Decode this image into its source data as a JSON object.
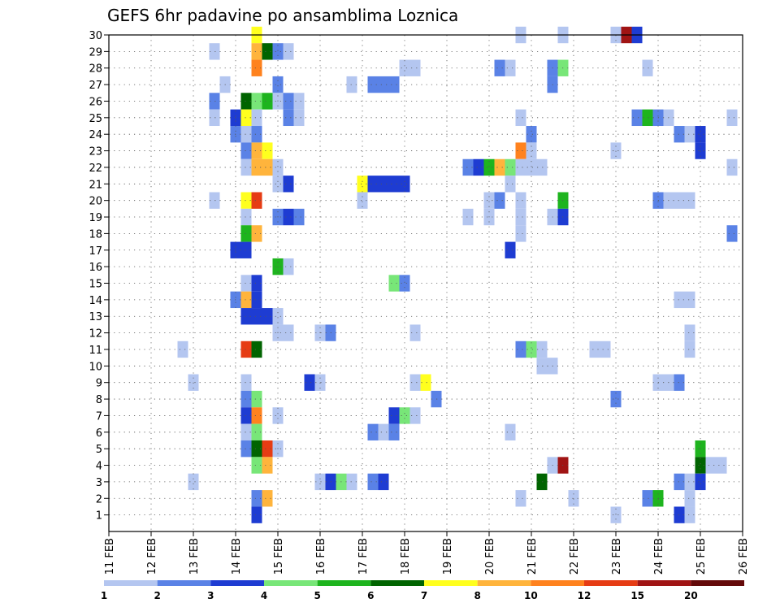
{
  "chart_data": {
    "type": "heatmap",
    "title": "GEFS 6hr padavine po ansamblima Loznica",
    "x_tick_labels": [
      "11 FEB",
      "12 FEB",
      "13 FEB",
      "14 FEB",
      "15 FEB",
      "16 FEB",
      "17 FEB",
      "18 FEB",
      "19 FEB",
      "20 FEB",
      "21 FEB",
      "22 FEB",
      "23 FEB",
      "24 FEB",
      "25 FEB",
      "26 FEB"
    ],
    "y_tick_labels": [
      "1",
      "2",
      "3",
      "4",
      "5",
      "6",
      "7",
      "8",
      "9",
      "10",
      "11",
      "12",
      "13",
      "14",
      "15",
      "16",
      "17",
      "18",
      "19",
      "20",
      "21",
      "22",
      "23",
      "24",
      "25",
      "26",
      "27",
      "28",
      "29",
      "30"
    ],
    "x_range_days": [
      11,
      26
    ],
    "y_range": [
      0,
      30
    ],
    "grid": true,
    "legend": {
      "position": "bottom",
      "boundaries": [
        "1",
        "2",
        "3",
        "4",
        "5",
        "6",
        "7",
        "8",
        "10",
        "12",
        "15",
        "20"
      ],
      "colors": [
        "#b4c6f0",
        "#5a82e6",
        "#1e3cd2",
        "#78e678",
        "#1eb41e",
        "#006400",
        "#ffff1e",
        "#ffb43c",
        "#ff821e",
        "#e63c14",
        "#a01414",
        "#640a0a"
      ]
    },
    "cells": [
      {
        "m": 30,
        "t": 14.5,
        "c": 6
      },
      {
        "m": 30,
        "t": 20.75,
        "c": 0
      },
      {
        "m": 30,
        "t": 21.75,
        "c": 0
      },
      {
        "m": 30,
        "t": 23.0,
        "c": 0
      },
      {
        "m": 30,
        "t": 23.25,
        "c": 10
      },
      {
        "m": 30,
        "t": 23.5,
        "c": 2
      },
      {
        "m": 29,
        "t": 13.5,
        "c": 0
      },
      {
        "m": 29,
        "t": 14.5,
        "c": 7
      },
      {
        "m": 29,
        "t": 14.75,
        "c": 5
      },
      {
        "m": 29,
        "t": 15.0,
        "c": 1
      },
      {
        "m": 29,
        "t": 15.25,
        "c": 0
      },
      {
        "m": 28,
        "t": 14.5,
        "c": 8
      },
      {
        "m": 28,
        "t": 18.0,
        "c": 0
      },
      {
        "m": 28,
        "t": 18.25,
        "c": 0
      },
      {
        "m": 28,
        "t": 20.25,
        "c": 1
      },
      {
        "m": 28,
        "t": 20.5,
        "c": 0
      },
      {
        "m": 28,
        "t": 21.5,
        "c": 1
      },
      {
        "m": 28,
        "t": 21.75,
        "c": 3
      },
      {
        "m": 28,
        "t": 23.75,
        "c": 0
      },
      {
        "m": 27,
        "t": 13.75,
        "c": 0
      },
      {
        "m": 27,
        "t": 15.0,
        "c": 1
      },
      {
        "m": 27,
        "t": 16.75,
        "c": 0
      },
      {
        "m": 27,
        "t": 17.25,
        "c": 1
      },
      {
        "m": 27,
        "t": 17.5,
        "c": 1
      },
      {
        "m": 27,
        "t": 17.75,
        "c": 1
      },
      {
        "m": 27,
        "t": 21.5,
        "c": 1
      },
      {
        "m": 26,
        "t": 13.5,
        "c": 1
      },
      {
        "m": 26,
        "t": 14.25,
        "c": 5
      },
      {
        "m": 26,
        "t": 14.5,
        "c": 3
      },
      {
        "m": 26,
        "t": 14.75,
        "c": 4
      },
      {
        "m": 26,
        "t": 15.0,
        "c": 0
      },
      {
        "m": 26,
        "t": 15.25,
        "c": 1
      },
      {
        "m": 26,
        "t": 15.5,
        "c": 0
      },
      {
        "m": 25,
        "t": 13.5,
        "c": 0
      },
      {
        "m": 25,
        "t": 14.0,
        "c": 2
      },
      {
        "m": 25,
        "t": 14.25,
        "c": 6
      },
      {
        "m": 25,
        "t": 14.5,
        "c": 0
      },
      {
        "m": 25,
        "t": 15.25,
        "c": 1
      },
      {
        "m": 25,
        "t": 15.5,
        "c": 0
      },
      {
        "m": 25,
        "t": 20.75,
        "c": 0
      },
      {
        "m": 25,
        "t": 23.5,
        "c": 1
      },
      {
        "m": 25,
        "t": 23.75,
        "c": 4
      },
      {
        "m": 25,
        "t": 24.0,
        "c": 1
      },
      {
        "m": 25,
        "t": 24.25,
        "c": 0
      },
      {
        "m": 25,
        "t": 25.75,
        "c": 0
      },
      {
        "m": 24,
        "t": 14.0,
        "c": 1
      },
      {
        "m": 24,
        "t": 14.25,
        "c": 0
      },
      {
        "m": 24,
        "t": 14.5,
        "c": 1
      },
      {
        "m": 24,
        "t": 21.0,
        "c": 1
      },
      {
        "m": 24,
        "t": 24.5,
        "c": 1
      },
      {
        "m": 24,
        "t": 24.75,
        "c": 0
      },
      {
        "m": 24,
        "t": 25.0,
        "c": 2
      },
      {
        "m": 23,
        "t": 14.25,
        "c": 1
      },
      {
        "m": 23,
        "t": 14.5,
        "c": 7
      },
      {
        "m": 23,
        "t": 14.75,
        "c": 6
      },
      {
        "m": 23,
        "t": 20.75,
        "c": 8
      },
      {
        "m": 23,
        "t": 21.0,
        "c": 0
      },
      {
        "m": 23,
        "t": 23.0,
        "c": 0
      },
      {
        "m": 23,
        "t": 25.0,
        "c": 2
      },
      {
        "m": 22,
        "t": 14.25,
        "c": 0
      },
      {
        "m": 22,
        "t": 14.5,
        "c": 7
      },
      {
        "m": 22,
        "t": 14.75,
        "c": 7
      },
      {
        "m": 22,
        "t": 15.0,
        "c": 0
      },
      {
        "m": 22,
        "t": 19.5,
        "c": 1
      },
      {
        "m": 22,
        "t": 19.75,
        "c": 2
      },
      {
        "m": 22,
        "t": 20.0,
        "c": 4
      },
      {
        "m": 22,
        "t": 20.25,
        "c": 7
      },
      {
        "m": 22,
        "t": 20.5,
        "c": 3
      },
      {
        "m": 22,
        "t": 20.75,
        "c": 0
      },
      {
        "m": 22,
        "t": 21.0,
        "c": 0
      },
      {
        "m": 22,
        "t": 21.25,
        "c": 0
      },
      {
        "m": 22,
        "t": 25.75,
        "c": 0
      },
      {
        "m": 21,
        "t": 15.0,
        "c": 0
      },
      {
        "m": 21,
        "t": 15.25,
        "c": 2
      },
      {
        "m": 21,
        "t": 17.0,
        "c": 6
      },
      {
        "m": 21,
        "t": 17.25,
        "c": 2
      },
      {
        "m": 21,
        "t": 17.5,
        "c": 2
      },
      {
        "m": 21,
        "t": 17.75,
        "c": 2
      },
      {
        "m": 21,
        "t": 18.0,
        "c": 2
      },
      {
        "m": 21,
        "t": 20.5,
        "c": 0
      },
      {
        "m": 20,
        "t": 13.5,
        "c": 0
      },
      {
        "m": 20,
        "t": 14.25,
        "c": 6
      },
      {
        "m": 20,
        "t": 14.5,
        "c": 9
      },
      {
        "m": 20,
        "t": 17.0,
        "c": 0
      },
      {
        "m": 20,
        "t": 20.0,
        "c": 0
      },
      {
        "m": 20,
        "t": 20.25,
        "c": 1
      },
      {
        "m": 20,
        "t": 20.75,
        "c": 0
      },
      {
        "m": 20,
        "t": 21.75,
        "c": 4
      },
      {
        "m": 20,
        "t": 24.0,
        "c": 1
      },
      {
        "m": 20,
        "t": 24.25,
        "c": 0
      },
      {
        "m": 20,
        "t": 24.5,
        "c": 0
      },
      {
        "m": 20,
        "t": 24.75,
        "c": 0
      },
      {
        "m": 19,
        "t": 14.25,
        "c": 0
      },
      {
        "m": 19,
        "t": 15.0,
        "c": 1
      },
      {
        "m": 19,
        "t": 15.25,
        "c": 2
      },
      {
        "m": 19,
        "t": 15.5,
        "c": 1
      },
      {
        "m": 19,
        "t": 19.5,
        "c": 0
      },
      {
        "m": 19,
        "t": 20.0,
        "c": 0
      },
      {
        "m": 19,
        "t": 20.75,
        "c": 0
      },
      {
        "m": 19,
        "t": 21.5,
        "c": 0
      },
      {
        "m": 19,
        "t": 21.75,
        "c": 2
      },
      {
        "m": 18,
        "t": 14.25,
        "c": 4
      },
      {
        "m": 18,
        "t": 14.5,
        "c": 7
      },
      {
        "m": 18,
        "t": 20.75,
        "c": 0
      },
      {
        "m": 18,
        "t": 25.75,
        "c": 1
      },
      {
        "m": 17,
        "t": 14.0,
        "c": 2
      },
      {
        "m": 17,
        "t": 14.25,
        "c": 2
      },
      {
        "m": 17,
        "t": 20.5,
        "c": 2
      },
      {
        "m": 16,
        "t": 15.0,
        "c": 4
      },
      {
        "m": 16,
        "t": 15.25,
        "c": 0
      },
      {
        "m": 15,
        "t": 14.25,
        "c": 0
      },
      {
        "m": 15,
        "t": 14.5,
        "c": 2
      },
      {
        "m": 15,
        "t": 17.75,
        "c": 3
      },
      {
        "m": 15,
        "t": 18.0,
        "c": 1
      },
      {
        "m": 14,
        "t": 14.0,
        "c": 1
      },
      {
        "m": 14,
        "t": 14.25,
        "c": 7
      },
      {
        "m": 14,
        "t": 14.5,
        "c": 2
      },
      {
        "m": 14,
        "t": 24.5,
        "c": 0
      },
      {
        "m": 14,
        "t": 24.75,
        "c": 0
      },
      {
        "m": 13,
        "t": 14.25,
        "c": 2
      },
      {
        "m": 13,
        "t": 14.5,
        "c": 2
      },
      {
        "m": 13,
        "t": 14.75,
        "c": 2
      },
      {
        "m": 13,
        "t": 15.0,
        "c": 0
      },
      {
        "m": 12,
        "t": 15.0,
        "c": 0
      },
      {
        "m": 12,
        "t": 15.25,
        "c": 0
      },
      {
        "m": 12,
        "t": 16.0,
        "c": 0
      },
      {
        "m": 12,
        "t": 16.25,
        "c": 1
      },
      {
        "m": 12,
        "t": 18.25,
        "c": 0
      },
      {
        "m": 12,
        "t": 24.75,
        "c": 0
      },
      {
        "m": 11,
        "t": 12.75,
        "c": 0
      },
      {
        "m": 11,
        "t": 14.25,
        "c": 9
      },
      {
        "m": 11,
        "t": 14.5,
        "c": 5
      },
      {
        "m": 11,
        "t": 20.75,
        "c": 1
      },
      {
        "m": 11,
        "t": 21.0,
        "c": 3
      },
      {
        "m": 11,
        "t": 21.25,
        "c": 0
      },
      {
        "m": 11,
        "t": 22.5,
        "c": 0
      },
      {
        "m": 11,
        "t": 22.75,
        "c": 0
      },
      {
        "m": 11,
        "t": 24.75,
        "c": 0
      },
      {
        "m": 10,
        "t": 21.25,
        "c": 0
      },
      {
        "m": 10,
        "t": 21.5,
        "c": 0
      },
      {
        "m": 9,
        "t": 13.0,
        "c": 0
      },
      {
        "m": 9,
        "t": 14.25,
        "c": 0
      },
      {
        "m": 9,
        "t": 15.75,
        "c": 2
      },
      {
        "m": 9,
        "t": 16.0,
        "c": 0
      },
      {
        "m": 9,
        "t": 18.25,
        "c": 0
      },
      {
        "m": 9,
        "t": 18.5,
        "c": 6
      },
      {
        "m": 9,
        "t": 24.0,
        "c": 0
      },
      {
        "m": 9,
        "t": 24.25,
        "c": 0
      },
      {
        "m": 9,
        "t": 24.5,
        "c": 1
      },
      {
        "m": 8,
        "t": 14.25,
        "c": 1
      },
      {
        "m": 8,
        "t": 14.5,
        "c": 3
      },
      {
        "m": 8,
        "t": 18.75,
        "c": 1
      },
      {
        "m": 8,
        "t": 23.0,
        "c": 1
      },
      {
        "m": 7,
        "t": 14.25,
        "c": 2
      },
      {
        "m": 7,
        "t": 14.5,
        "c": 8
      },
      {
        "m": 7,
        "t": 15.0,
        "c": 0
      },
      {
        "m": 7,
        "t": 17.75,
        "c": 2
      },
      {
        "m": 7,
        "t": 18.0,
        "c": 3
      },
      {
        "m": 7,
        "t": 18.25,
        "c": 0
      },
      {
        "m": 6,
        "t": 14.25,
        "c": 0
      },
      {
        "m": 6,
        "t": 14.5,
        "c": 3
      },
      {
        "m": 6,
        "t": 17.25,
        "c": 1
      },
      {
        "m": 6,
        "t": 17.5,
        "c": 0
      },
      {
        "m": 6,
        "t": 17.75,
        "c": 1
      },
      {
        "m": 6,
        "t": 20.5,
        "c": 0
      },
      {
        "m": 5,
        "t": 14.25,
        "c": 1
      },
      {
        "m": 5,
        "t": 14.5,
        "c": 5
      },
      {
        "m": 5,
        "t": 14.75,
        "c": 9
      },
      {
        "m": 5,
        "t": 15.0,
        "c": 0
      },
      {
        "m": 5,
        "t": 25.0,
        "c": 4
      },
      {
        "m": 4,
        "t": 14.5,
        "c": 3
      },
      {
        "m": 4,
        "t": 14.75,
        "c": 7
      },
      {
        "m": 4,
        "t": 21.5,
        "c": 0
      },
      {
        "m": 4,
        "t": 21.75,
        "c": 10
      },
      {
        "m": 4,
        "t": 25.0,
        "c": 5
      },
      {
        "m": 4,
        "t": 25.25,
        "c": 0
      },
      {
        "m": 4,
        "t": 25.5,
        "c": 0
      },
      {
        "m": 3,
        "t": 13.0,
        "c": 0
      },
      {
        "m": 3,
        "t": 16.0,
        "c": 0
      },
      {
        "m": 3,
        "t": 16.25,
        "c": 2
      },
      {
        "m": 3,
        "t": 16.5,
        "c": 3
      },
      {
        "m": 3,
        "t": 16.75,
        "c": 0
      },
      {
        "m": 3,
        "t": 17.25,
        "c": 1
      },
      {
        "m": 3,
        "t": 17.5,
        "c": 2
      },
      {
        "m": 3,
        "t": 21.25,
        "c": 5
      },
      {
        "m": 3,
        "t": 24.5,
        "c": 1
      },
      {
        "m": 3,
        "t": 24.75,
        "c": 0
      },
      {
        "m": 3,
        "t": 25.0,
        "c": 2
      },
      {
        "m": 2,
        "t": 14.5,
        "c": 1
      },
      {
        "m": 2,
        "t": 14.75,
        "c": 7
      },
      {
        "m": 2,
        "t": 20.75,
        "c": 0
      },
      {
        "m": 2,
        "t": 22.0,
        "c": 0
      },
      {
        "m": 2,
        "t": 23.75,
        "c": 1
      },
      {
        "m": 2,
        "t": 24.0,
        "c": 4
      },
      {
        "m": 2,
        "t": 24.75,
        "c": 0
      },
      {
        "m": 1,
        "t": 14.5,
        "c": 2
      },
      {
        "m": 1,
        "t": 23.0,
        "c": 0
      },
      {
        "m": 1,
        "t": 24.5,
        "c": 2
      },
      {
        "m": 1,
        "t": 24.75,
        "c": 0
      }
    ]
  }
}
